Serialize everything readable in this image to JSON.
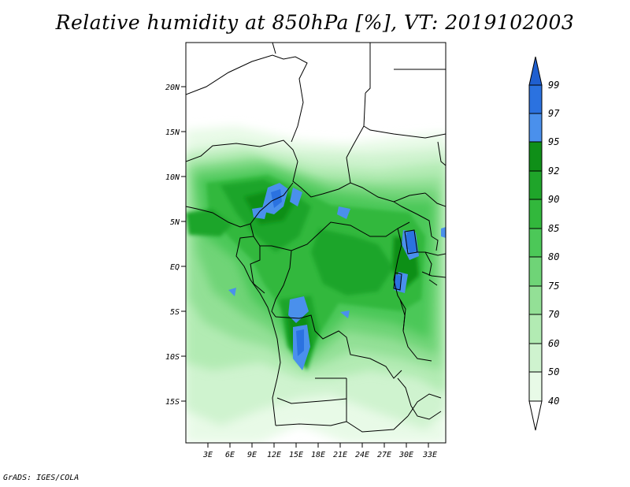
{
  "title": "Relative humidity at 850hPa [%], VT: 2019102003",
  "credit": "GrADS: IGES/COLA",
  "map": {
    "lat_labels": [
      "20N",
      "15N",
      "10N",
      "5N",
      "EQ",
      "5S",
      "10S",
      "15S"
    ],
    "lon_labels": [
      "3E",
      "6E",
      "9E",
      "12E",
      "15E",
      "18E",
      "21E",
      "24E",
      "27E",
      "30E",
      "33E"
    ]
  },
  "colorbar": {
    "labels": [
      "99",
      "97",
      "95",
      "92",
      "90",
      "85",
      "80",
      "75",
      "70",
      "60",
      "50",
      "40"
    ],
    "colors": {
      "99+": "#1f5fd0",
      "97-99": "#2b72e0",
      "95-97": "#4a90ec",
      "92-95": "#0f8f18",
      "90-92": "#1fa52a",
      "85-90": "#32b83c",
      "80-85": "#4cc858",
      "75-80": "#6fd477",
      "70-75": "#93e096",
      "60-70": "#b2ebb3",
      "50-60": "#cff3cf",
      "40-50": "#e8fae7",
      "<40": "#ffffff"
    }
  }
}
